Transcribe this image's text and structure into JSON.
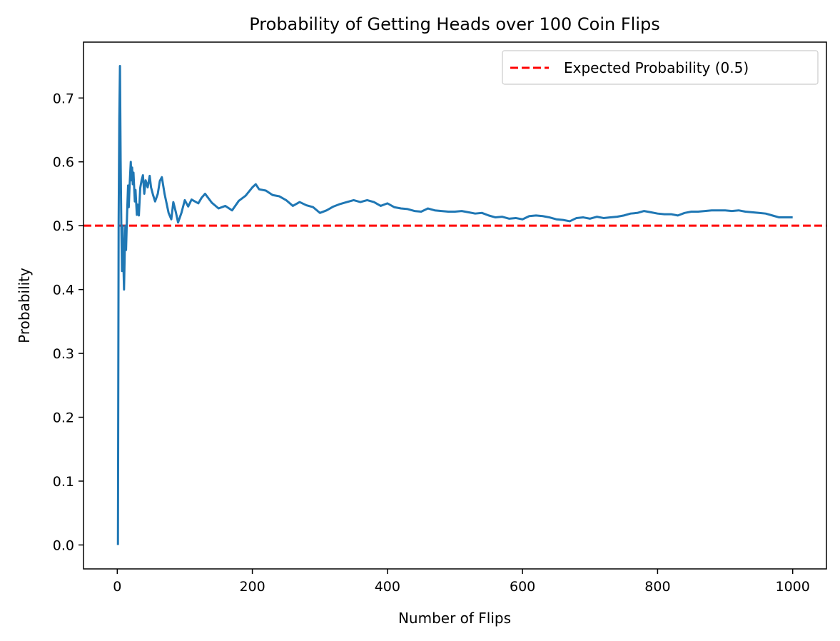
{
  "chart_data": {
    "type": "line",
    "title": "Probability of Getting Heads over 100 Coin Flips",
    "xlabel": "Number of Flips",
    "ylabel": "Probability",
    "xlim": [
      -50,
      1050
    ],
    "ylim": [
      -0.0375,
      0.7875
    ],
    "xticks": [
      0,
      200,
      400,
      600,
      800,
      1000
    ],
    "yticks": [
      0.0,
      0.1,
      0.2,
      0.3,
      0.4,
      0.5,
      0.6,
      0.7
    ],
    "grid": false,
    "legend": {
      "placement": "top-right",
      "entries": [
        "Expected Probability (0.5)"
      ]
    },
    "reference_line": {
      "name": "Expected Probability (0.5)",
      "y": 0.5,
      "style": "dashed",
      "color": "#ff0000"
    },
    "series": [
      {
        "color": "#1f77b4",
        "points": [
          [
            1,
            0.0
          ],
          [
            2,
            0.5
          ],
          [
            3,
            0.667
          ],
          [
            4,
            0.75
          ],
          [
            5,
            0.6
          ],
          [
            6,
            0.5
          ],
          [
            7,
            0.429
          ],
          [
            8,
            0.5
          ],
          [
            9,
            0.444
          ],
          [
            10,
            0.4
          ],
          [
            11,
            0.455
          ],
          [
            12,
            0.5
          ],
          [
            13,
            0.462
          ],
          [
            14,
            0.5
          ],
          [
            15,
            0.533
          ],
          [
            16,
            0.563
          ],
          [
            17,
            0.529
          ],
          [
            18,
            0.556
          ],
          [
            19,
            0.579
          ],
          [
            20,
            0.6
          ],
          [
            21,
            0.571
          ],
          [
            22,
            0.591
          ],
          [
            23,
            0.565
          ],
          [
            24,
            0.583
          ],
          [
            25,
            0.56
          ],
          [
            26,
            0.538
          ],
          [
            27,
            0.556
          ],
          [
            28,
            0.536
          ],
          [
            29,
            0.517
          ],
          [
            30,
            0.533
          ],
          [
            32,
            0.516
          ],
          [
            34,
            0.559
          ],
          [
            36,
            0.571
          ],
          [
            38,
            0.579
          ],
          [
            40,
            0.55
          ],
          [
            42,
            0.571
          ],
          [
            45,
            0.56
          ],
          [
            48,
            0.578
          ],
          [
            50,
            0.56
          ],
          [
            53,
            0.548
          ],
          [
            56,
            0.538
          ],
          [
            60,
            0.55
          ],
          [
            63,
            0.57
          ],
          [
            66,
            0.576
          ],
          [
            70,
            0.55
          ],
          [
            73,
            0.535
          ],
          [
            76,
            0.52
          ],
          [
            80,
            0.51
          ],
          [
            83,
            0.537
          ],
          [
            87,
            0.52
          ],
          [
            90,
            0.505
          ],
          [
            95,
            0.52
          ],
          [
            100,
            0.54
          ],
          [
            105,
            0.53
          ],
          [
            110,
            0.541
          ],
          [
            120,
            0.535
          ],
          [
            125,
            0.544
          ],
          [
            130,
            0.55
          ],
          [
            140,
            0.536
          ],
          [
            150,
            0.527
          ],
          [
            160,
            0.531
          ],
          [
            170,
            0.524
          ],
          [
            180,
            0.539
          ],
          [
            190,
            0.547
          ],
          [
            200,
            0.56
          ],
          [
            205,
            0.565
          ],
          [
            210,
            0.557
          ],
          [
            220,
            0.555
          ],
          [
            230,
            0.548
          ],
          [
            240,
            0.546
          ],
          [
            250,
            0.54
          ],
          [
            260,
            0.531
          ],
          [
            270,
            0.537
          ],
          [
            280,
            0.532
          ],
          [
            290,
            0.529
          ],
          [
            300,
            0.52
          ],
          [
            310,
            0.524
          ],
          [
            320,
            0.53
          ],
          [
            330,
            0.534
          ],
          [
            340,
            0.537
          ],
          [
            350,
            0.54
          ],
          [
            360,
            0.537
          ],
          [
            370,
            0.54
          ],
          [
            380,
            0.537
          ],
          [
            390,
            0.531
          ],
          [
            400,
            0.535
          ],
          [
            410,
            0.529
          ],
          [
            420,
            0.527
          ],
          [
            430,
            0.526
          ],
          [
            440,
            0.523
          ],
          [
            450,
            0.522
          ],
          [
            460,
            0.527
          ],
          [
            470,
            0.524
          ],
          [
            480,
            0.523
          ],
          [
            490,
            0.522
          ],
          [
            500,
            0.522
          ],
          [
            510,
            0.523
          ],
          [
            520,
            0.521
          ],
          [
            530,
            0.519
          ],
          [
            540,
            0.52
          ],
          [
            550,
            0.516
          ],
          [
            560,
            0.513
          ],
          [
            570,
            0.514
          ],
          [
            580,
            0.511
          ],
          [
            590,
            0.512
          ],
          [
            600,
            0.51
          ],
          [
            610,
            0.515
          ],
          [
            620,
            0.516
          ],
          [
            630,
            0.515
          ],
          [
            640,
            0.513
          ],
          [
            650,
            0.51
          ],
          [
            660,
            0.509
          ],
          [
            670,
            0.507
          ],
          [
            680,
            0.512
          ],
          [
            690,
            0.513
          ],
          [
            700,
            0.511
          ],
          [
            710,
            0.514
          ],
          [
            720,
            0.512
          ],
          [
            730,
            0.513
          ],
          [
            740,
            0.514
          ],
          [
            750,
            0.516
          ],
          [
            760,
            0.519
          ],
          [
            770,
            0.52
          ],
          [
            780,
            0.523
          ],
          [
            790,
            0.521
          ],
          [
            800,
            0.519
          ],
          [
            810,
            0.518
          ],
          [
            820,
            0.518
          ],
          [
            830,
            0.516
          ],
          [
            840,
            0.52
          ],
          [
            850,
            0.522
          ],
          [
            860,
            0.522
          ],
          [
            870,
            0.523
          ],
          [
            880,
            0.524
          ],
          [
            890,
            0.524
          ],
          [
            900,
            0.524
          ],
          [
            910,
            0.523
          ],
          [
            920,
            0.524
          ],
          [
            930,
            0.522
          ],
          [
            940,
            0.521
          ],
          [
            950,
            0.52
          ],
          [
            960,
            0.519
          ],
          [
            970,
            0.516
          ],
          [
            980,
            0.513
          ],
          [
            990,
            0.513
          ],
          [
            1000,
            0.513
          ]
        ]
      }
    ]
  }
}
